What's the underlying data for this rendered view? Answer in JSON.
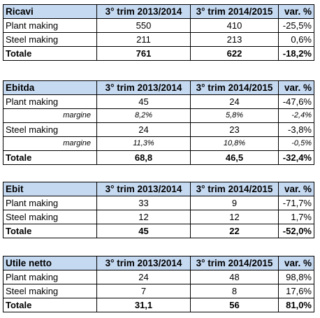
{
  "columns": {
    "prev": "3° trim 2013/2014",
    "curr": "3° trim 2014/2015",
    "var": "var. %"
  },
  "ricavi": {
    "title": "Ricavi",
    "rows": [
      {
        "label": "Plant making",
        "prev": "550",
        "curr": "410",
        "var": "-25,5%"
      },
      {
        "label": "Steel making",
        "prev": "211",
        "curr": "213",
        "var": "0,6%"
      }
    ],
    "total": {
      "label": "Totale",
      "prev": "761",
      "curr": "622",
      "var": "-18,2%"
    }
  },
  "ebitda": {
    "title": "Ebitda",
    "rows": [
      {
        "label": "Plant making",
        "prev": "45",
        "curr": "24",
        "var": "-47,6%"
      },
      {
        "label": "margine",
        "prev": "8,2%",
        "curr": "5,8%",
        "var": "-2,4%"
      },
      {
        "label": "Steel making",
        "prev": "24",
        "curr": "23",
        "var": "-3,8%"
      },
      {
        "label": "margine",
        "prev": "11,3%",
        "curr": "10,8%",
        "var": "-0,5%"
      }
    ],
    "total": {
      "label": "Totale",
      "prev": "68,8",
      "curr": "46,5",
      "var": "-32,4%"
    }
  },
  "ebit": {
    "title": "Ebit",
    "rows": [
      {
        "label": "Plant making",
        "prev": "33",
        "curr": "9",
        "var": "-71,7%"
      },
      {
        "label": "Steel making",
        "prev": "12",
        "curr": "12",
        "var": "1,7%"
      }
    ],
    "total": {
      "label": "Totale",
      "prev": "45",
      "curr": "22",
      "var": "-52,0%"
    }
  },
  "utile": {
    "title": "Utile netto",
    "rows": [
      {
        "label": "Plant making",
        "prev": "24",
        "curr": "48",
        "var": "98,8%"
      },
      {
        "label": "Steel making",
        "prev": "7",
        "curr": "8",
        "var": "17,6%"
      }
    ],
    "total": {
      "label": "Totale",
      "prev": "31,1",
      "curr": "56",
      "var": "81,0%"
    }
  }
}
